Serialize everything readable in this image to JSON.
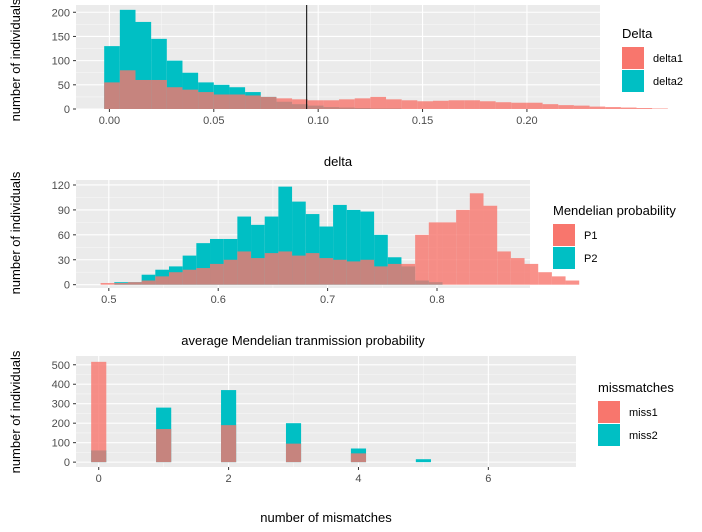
{
  "chart_data": [
    {
      "type": "histogram",
      "xlabel": "delta",
      "ylabel": "number of individuals",
      "xlim": [
        -0.016,
        0.235
      ],
      "ylim": [
        0,
        215
      ],
      "xticks": [
        0.0,
        0.05,
        0.1,
        0.15,
        0.2
      ],
      "xtick_labels": [
        "0.00",
        "0.05",
        "0.10",
        "0.15",
        "0.20"
      ],
      "yticks": [
        0,
        50,
        100,
        150,
        200
      ],
      "bin_width": 0.0075,
      "bin_start": -0.0025,
      "vline_x": 0.0945,
      "grid": true,
      "legend": {
        "title": "Delta",
        "position": "right",
        "entries": [
          {
            "name": "delta1",
            "color": "#F8766D"
          },
          {
            "name": "delta2",
            "color": "#00BFC4"
          }
        ]
      },
      "series": [
        {
          "name": "delta1",
          "color": "#F8766D",
          "values": [
            55,
            80,
            60,
            60,
            45,
            40,
            35,
            30,
            30,
            28,
            25,
            22,
            20,
            18,
            18,
            20,
            22,
            25,
            20,
            18,
            16,
            17,
            18,
            18,
            16,
            14,
            13,
            13,
            10,
            8,
            7,
            5,
            4,
            3,
            2,
            1
          ]
        },
        {
          "name": "delta2",
          "color": "#00BFC4",
          "values": [
            130,
            205,
            180,
            145,
            100,
            75,
            55,
            50,
            45,
            35,
            25,
            15,
            10,
            7,
            4,
            3,
            2,
            1,
            1,
            0,
            0,
            0,
            0,
            0,
            0,
            0,
            0,
            0,
            0,
            0,
            0,
            0,
            0,
            0,
            0,
            0
          ]
        }
      ]
    },
    {
      "type": "histogram",
      "xlabel": "average Mendelian tranmission probability",
      "ylabel": "number of individuals",
      "xlim": [
        0.47,
        0.885
      ],
      "ylim": [
        -4,
        126
      ],
      "xticks": [
        0.5,
        0.6,
        0.7,
        0.8
      ],
      "xtick_labels": [
        "0.5",
        "0.6",
        "0.7",
        "0.8"
      ],
      "yticks": [
        0,
        30,
        60,
        90,
        120
      ],
      "bin_width": 0.0125,
      "bin_start": 0.48,
      "grid": true,
      "legend": {
        "title": "Mendelian probability",
        "position": "right",
        "entries": [
          {
            "name": "P1",
            "color": "#F8766D"
          },
          {
            "name": "P2",
            "color": "#00BFC4"
          }
        ]
      },
      "series": [
        {
          "name": "P1",
          "color": "#F8766D",
          "values": [
            0,
            2,
            2,
            3,
            5,
            10,
            15,
            18,
            20,
            25,
            30,
            40,
            32,
            38,
            40,
            35,
            38,
            32,
            30,
            28,
            30,
            22,
            25,
            25,
            60,
            75,
            75,
            90,
            110,
            95,
            40,
            32,
            25,
            15,
            10,
            5
          ]
        },
        {
          "name": "P2",
          "color": "#00BFC4",
          "values": [
            0,
            0,
            3,
            3,
            12,
            18,
            22,
            35,
            50,
            55,
            55,
            82,
            72,
            82,
            118,
            100,
            85,
            70,
            96,
            90,
            88,
            60,
            33,
            22,
            5,
            3,
            0,
            0,
            0,
            0,
            0,
            0,
            0,
            0,
            0,
            0
          ]
        }
      ]
    },
    {
      "type": "histogram",
      "xlabel": "number of mismatches",
      "ylabel": "number of individuals",
      "xlim": [
        -0.35,
        7.35
      ],
      "ylim": [
        -25,
        545
      ],
      "xticks": [
        0,
        2,
        4,
        6
      ],
      "xtick_labels": [
        "0",
        "2",
        "4",
        "6"
      ],
      "yticks": [
        0,
        100,
        200,
        300,
        400,
        500
      ],
      "bin_width": 0.233,
      "grid": true,
      "legend": {
        "title": "missmatches",
        "position": "right",
        "entries": [
          {
            "name": "miss1",
            "color": "#F8766D"
          },
          {
            "name": "miss2",
            "color": "#00BFC4"
          }
        ]
      },
      "series": [
        {
          "name": "miss1",
          "color": "#F8766D",
          "x": [
            0,
            1,
            2,
            3,
            4,
            5
          ],
          "values": [
            515,
            170,
            190,
            95,
            45,
            0
          ]
        },
        {
          "name": "miss2",
          "color": "#00BFC4",
          "x": [
            0,
            1,
            2,
            3,
            4,
            5
          ],
          "values": [
            60,
            280,
            370,
            200,
            70,
            15
          ]
        }
      ]
    }
  ]
}
